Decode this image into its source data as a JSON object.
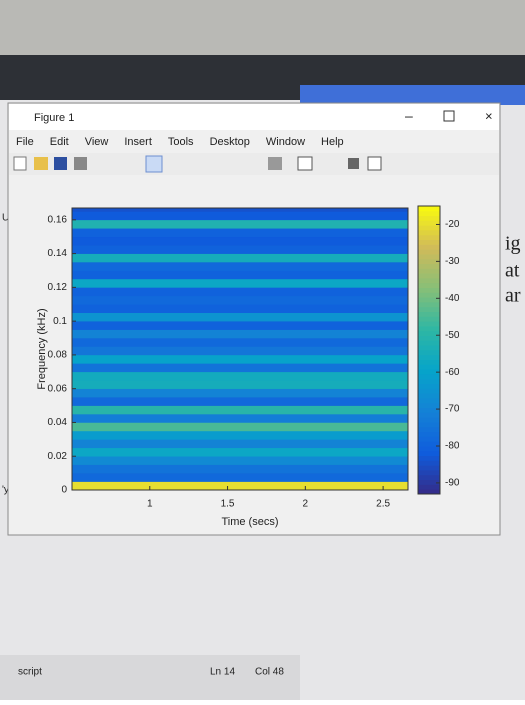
{
  "window": {
    "title": "Figure 1",
    "menu": [
      "File",
      "Edit",
      "View",
      "Insert",
      "Tools",
      "Desktop",
      "Window",
      "Help"
    ]
  },
  "background": {
    "fragments": [
      "UN",
      "ig",
      "at",
      "ar",
      "'yax"
    ]
  },
  "editor": {
    "label": "script",
    "line": "Ln 14",
    "col": "Col 48"
  },
  "chart_data": {
    "type": "spectrogram",
    "xlabel": "Time (secs)",
    "ylabel": "Frequency (kHz)",
    "xlim": [
      0.5,
      2.66
    ],
    "ylim": [
      0,
      0.167
    ],
    "xticks": [
      1,
      1.5,
      2,
      2.5
    ],
    "yticks": [
      0,
      0.02,
      0.04,
      0.06,
      0.08,
      0.1,
      0.12,
      0.14,
      0.16
    ],
    "freq_bins": [
      0,
      0.005,
      0.01,
      0.015,
      0.02,
      0.025,
      0.03,
      0.035,
      0.04,
      0.045,
      0.05,
      0.055,
      0.06,
      0.065,
      0.07,
      0.075,
      0.08,
      0.085,
      0.09,
      0.095,
      0.1,
      0.105,
      0.11,
      0.115,
      0.12,
      0.125,
      0.13,
      0.135,
      0.14,
      0.145,
      0.15,
      0.155,
      0.16,
      0.165,
      0.17
    ],
    "levels": [
      -20,
      -78,
      -75,
      -68,
      -58,
      -70,
      -62,
      -45,
      -72,
      -50,
      -78,
      -70,
      -55,
      -56,
      -75,
      -60,
      -74,
      -78,
      -70,
      -80,
      -65,
      -80,
      -78,
      -80,
      -58,
      -80,
      -78,
      -55,
      -80,
      -82,
      -80,
      -52,
      -82,
      -84
    ],
    "clim": [
      -93,
      -15
    ],
    "cticks": [
      -90,
      -80,
      -70,
      -60,
      -50,
      -40,
      -30,
      -20
    ],
    "colormap": [
      "#352a87",
      "#0f5cdd",
      "#1481d6",
      "#06a4ca",
      "#2eb7a4",
      "#87bf77",
      "#d1bb59",
      "#f9fb0e"
    ]
  }
}
